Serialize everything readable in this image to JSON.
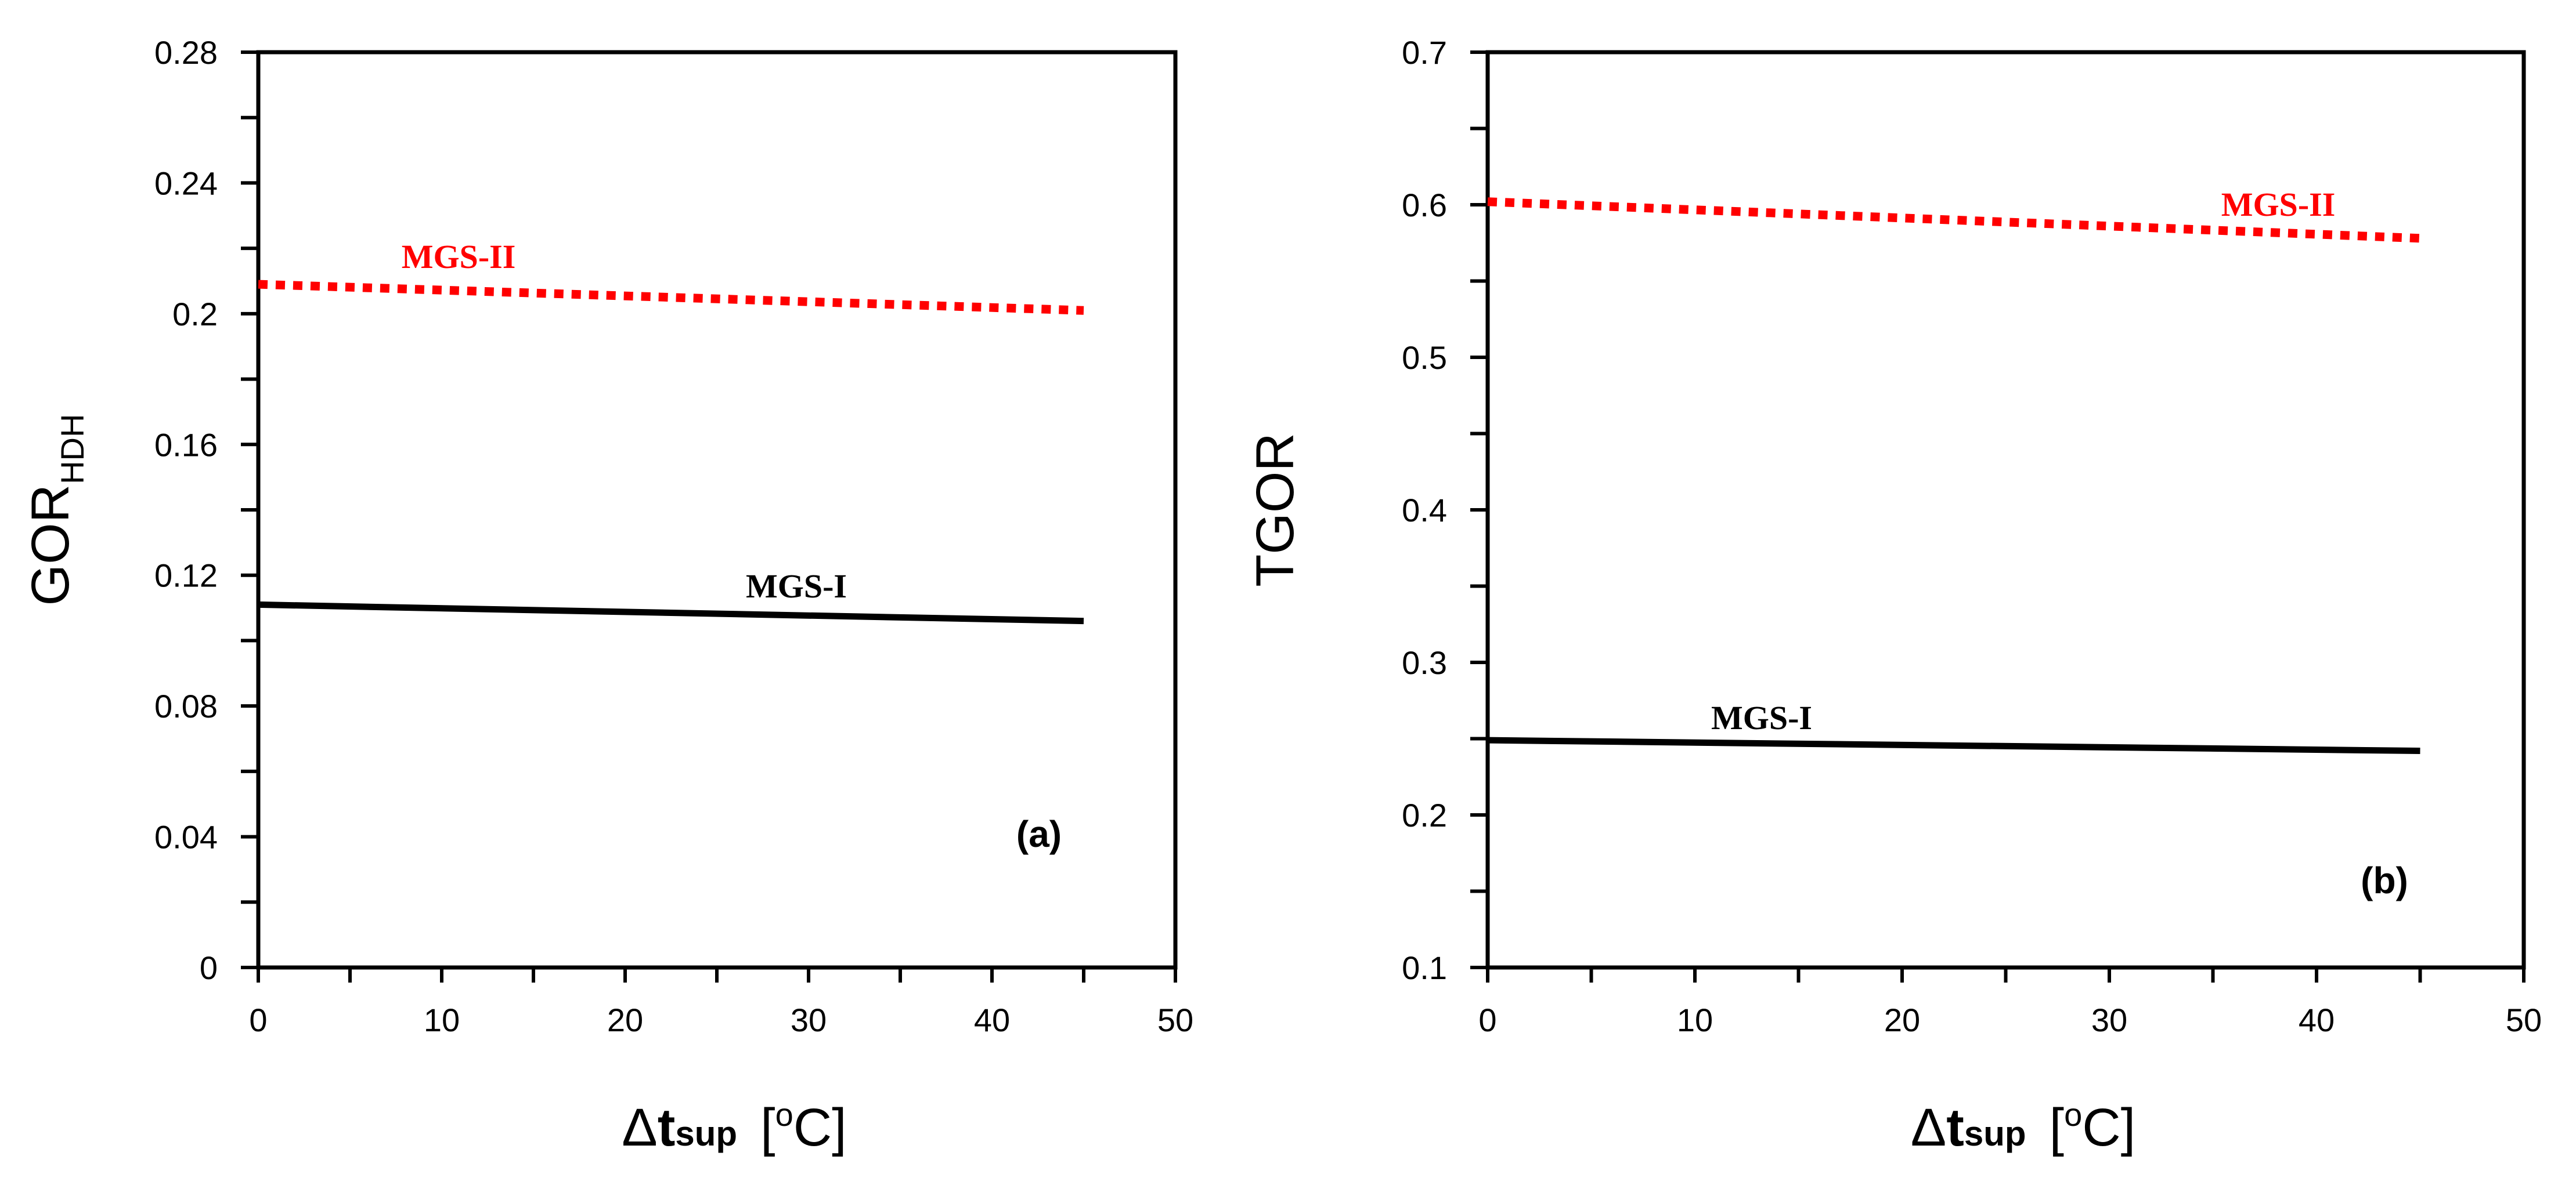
{
  "colors": {
    "mgs_i": "#000000",
    "mgs_ii": "#ff0000",
    "axis": "#000000"
  },
  "chart_data": [
    {
      "type": "line",
      "panel_label": "(a)",
      "xlabel": {
        "delta": "Δ",
        "t": "t",
        "sub": "sup",
        "unit_open": "[",
        "unit_o": "o",
        "unit_c": "C]"
      },
      "ylabel": {
        "main": "GOR",
        "sub": "HDH"
      },
      "xlim": [
        0,
        50
      ],
      "ylim": [
        0,
        0.28
      ],
      "x_ticks": [
        "0",
        "10",
        "20",
        "30",
        "40",
        "50"
      ],
      "y_ticks": [
        "0",
        "0.04",
        "0.08",
        "0.12",
        "0.16",
        "0.2",
        "0.24",
        "0.28"
      ],
      "series": [
        {
          "name": "MGS-I",
          "style": "solid",
          "color": "#000000",
          "x": [
            0,
            45
          ],
          "y": [
            0.111,
            0.106
          ]
        },
        {
          "name": "MGS-II",
          "style": "dotted",
          "color": "#ff0000",
          "x": [
            0,
            45
          ],
          "y": [
            0.209,
            0.201
          ]
        }
      ]
    },
    {
      "type": "line",
      "panel_label": "(b)",
      "xlabel": {
        "delta": "Δ",
        "t": "t",
        "sub": "sup",
        "unit_open": "[",
        "unit_o": "o",
        "unit_c": "C]"
      },
      "ylabel": {
        "main": "TGOR",
        "sub": ""
      },
      "xlim": [
        0,
        50
      ],
      "ylim": [
        0.1,
        0.7
      ],
      "x_ticks": [
        "0",
        "10",
        "20",
        "30",
        "40",
        "50"
      ],
      "y_ticks": [
        "0.1",
        "0.2",
        "0.3",
        "0.4",
        "0.5",
        "0.6",
        "0.7"
      ],
      "series": [
        {
          "name": "MGS-I",
          "style": "solid",
          "color": "#000000",
          "x": [
            0,
            45
          ],
          "y": [
            0.249,
            0.242
          ]
        },
        {
          "name": "MGS-II",
          "style": "dotted",
          "color": "#ff0000",
          "x": [
            0,
            45
          ],
          "y": [
            0.602,
            0.578
          ]
        }
      ]
    }
  ]
}
